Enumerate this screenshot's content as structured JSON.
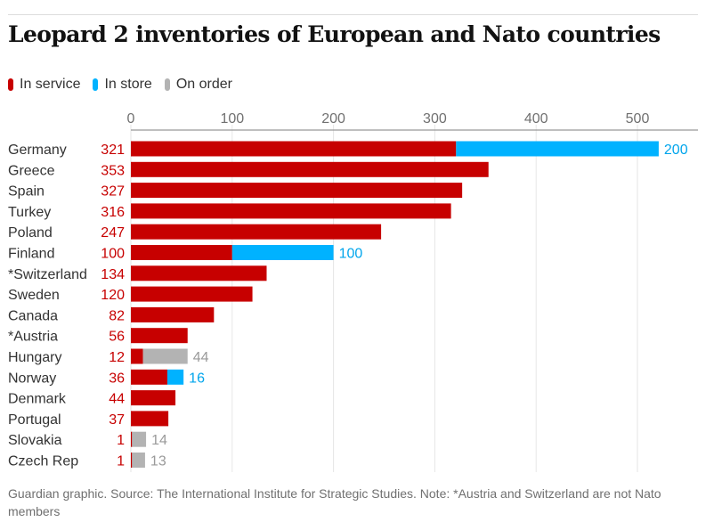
{
  "title": "Leopard 2 inventories of European and Nato countries",
  "legend": [
    {
      "label": "In service",
      "color": "#c70000"
    },
    {
      "label": "In store",
      "color": "#00b2ff"
    },
    {
      "label": "On order",
      "color": "#b3b3b3"
    }
  ],
  "source": "Guardian graphic. Source: The International Institute for Strategic Studies. Note: *Austria and Switzerland are not Nato members",
  "chart_data": {
    "type": "bar",
    "orientation": "horizontal",
    "stacked": true,
    "title": "Leopard 2 inventories of European and Nato countries",
    "xlim": [
      0,
      550
    ],
    "xticks": [
      0,
      100,
      200,
      300,
      400,
      500
    ],
    "grid": true,
    "legend_position": "top-left",
    "categories": [
      "Germany",
      "Greece",
      "Spain",
      "Turkey",
      "Poland",
      "Finland",
      "*Switzerland",
      "Sweden",
      "Canada",
      "*Austria",
      "Hungary",
      "Norway",
      "Denmark",
      "Portugal",
      "Slovakia",
      "Czech Rep"
    ],
    "series": [
      {
        "name": "In service",
        "color": "#c70000",
        "values": [
          321,
          353,
          327,
          316,
          247,
          100,
          134,
          120,
          82,
          56,
          12,
          36,
          44,
          37,
          1,
          1
        ]
      },
      {
        "name": "In store",
        "color": "#00b2ff",
        "values": [
          200,
          0,
          0,
          0,
          0,
          100,
          0,
          0,
          0,
          0,
          0,
          16,
          0,
          0,
          0,
          0
        ]
      },
      {
        "name": "On order",
        "color": "#b3b3b3",
        "values": [
          0,
          0,
          0,
          0,
          0,
          0,
          0,
          0,
          0,
          0,
          44,
          0,
          0,
          0,
          14,
          13
        ]
      }
    ]
  }
}
